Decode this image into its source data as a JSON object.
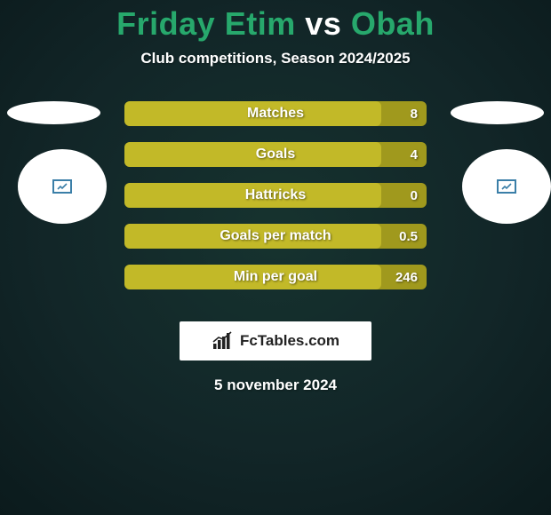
{
  "background": {
    "color_dark": "#0b1a1c",
    "color_mid": "#122628",
    "color_light": "#16332f",
    "vignette_opacity": 0.55
  },
  "title": {
    "player1": "Friday Etim",
    "vs": "vs",
    "player2": "Obah",
    "player_color": "#27a86c",
    "vs_color": "#ffffff"
  },
  "subtitle": "Club competitions, Season 2024/2025",
  "badges": {
    "left_color": "#3b7fa8",
    "right_color": "#3b7fa8"
  },
  "bars": {
    "track_color": "#a0991d",
    "fill_color": "#c2b928",
    "text_color": "#ffffff",
    "items": [
      {
        "label": "Matches",
        "value": "8",
        "fill_pct": 85
      },
      {
        "label": "Goals",
        "value": "4",
        "fill_pct": 85
      },
      {
        "label": "Hattricks",
        "value": "0",
        "fill_pct": 85
      },
      {
        "label": "Goals per match",
        "value": "0.5",
        "fill_pct": 85
      },
      {
        "label": "Min per goal",
        "value": "246",
        "fill_pct": 85
      }
    ]
  },
  "brand": {
    "name": "FcTables.com",
    "icon_color": "#222222",
    "bg": "#ffffff"
  },
  "date": "5 november 2024"
}
